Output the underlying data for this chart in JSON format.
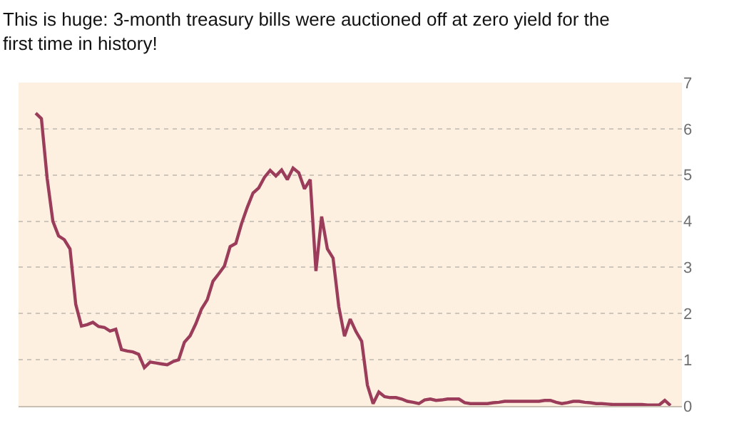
{
  "chart_data": {
    "type": "line",
    "title": "This is huge: 3-month treasury bills were auctioned off at zero yield for the first time in history!",
    "categories": [
      null,
      null,
      null,
      null,
      null,
      null,
      null,
      null,
      null,
      null,
      null,
      null,
      null,
      null,
      null,
      null,
      null,
      null,
      null,
      null,
      null,
      null,
      null,
      null,
      null,
      null,
      null,
      null,
      null,
      null,
      null,
      null,
      null,
      null,
      null,
      null,
      null,
      null,
      null,
      null,
      null,
      null,
      null,
      null,
      null,
      null,
      null,
      null,
      null,
      null,
      null,
      null,
      null,
      null,
      null,
      null,
      null,
      null,
      null,
      null,
      null,
      null,
      null,
      null,
      null,
      null,
      null,
      null,
      null,
      null,
      null,
      null,
      null,
      null,
      null,
      null,
      null,
      null,
      null,
      null,
      null,
      null,
      null,
      null,
      null,
      null,
      null,
      null,
      null,
      null,
      null,
      null,
      null,
      null,
      null,
      null,
      null,
      null,
      null,
      null,
      null,
      null,
      null,
      null,
      null,
      null,
      null,
      null,
      null,
      null,
      null,
      null
    ],
    "series": [
      {
        "color": "#9b3d5a",
        "values": [
          6.34,
          6.22,
          4.93,
          4.0,
          3.68,
          3.6,
          3.4,
          2.2,
          1.73,
          1.76,
          1.81,
          1.72,
          1.7,
          1.62,
          1.66,
          1.22,
          1.19,
          1.17,
          1.12,
          0.83,
          0.95,
          0.93,
          0.91,
          0.89,
          0.96,
          1.0,
          1.38,
          1.52,
          1.78,
          2.1,
          2.3,
          2.7,
          2.86,
          3.03,
          3.45,
          3.52,
          3.95,
          4.3,
          4.61,
          4.72,
          4.95,
          5.1,
          4.98,
          5.11,
          4.9,
          5.15,
          5.05,
          4.7,
          4.9,
          2.92,
          4.1,
          3.4,
          3.2,
          2.15,
          1.51,
          1.88,
          1.61,
          1.4,
          0.45,
          0.05,
          0.3,
          0.2,
          0.18,
          0.18,
          0.15,
          0.1,
          0.08,
          0.05,
          0.13,
          0.15,
          0.12,
          0.13,
          0.15,
          0.15,
          0.15,
          0.07,
          0.05,
          0.05,
          0.05,
          0.05,
          0.07,
          0.08,
          0.1,
          0.1,
          0.1,
          0.1,
          0.1,
          0.1,
          0.1,
          0.12,
          0.12,
          0.08,
          0.05,
          0.07,
          0.1,
          0.1,
          0.08,
          0.07,
          0.05,
          0.05,
          0.04,
          0.03,
          0.03,
          0.03,
          0.03,
          0.03,
          0.03,
          0.02,
          0.02,
          0.02,
          0.12,
          0.01
        ]
      }
    ],
    "ylim": [
      0,
      7
    ],
    "yticks": [
      0,
      1,
      2,
      3,
      4,
      5,
      6,
      7
    ],
    "grid": "y",
    "tick_labels": "y",
    "marker": "none",
    "line_style": "solid"
  }
}
